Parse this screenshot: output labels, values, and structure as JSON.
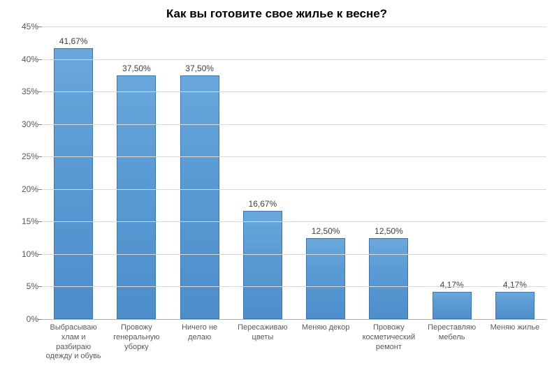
{
  "chart": {
    "type": "bar",
    "title": "Как вы готовите свое жилье к весне?",
    "title_fontsize": 17,
    "title_fontweight": "bold",
    "title_color": "#000000",
    "background_color": "#ffffff",
    "grid_color": "#d9d9d9",
    "axis_line_color": "#b0b0b0",
    "tick_label_color": "#595959",
    "tick_label_fontsize": 12,
    "category_label_fontsize": 11,
    "data_label_fontsize": 12,
    "data_label_color": "#404040",
    "bar_fill_top": "#6aa8dc",
    "bar_fill_mid": "#5b9bd5",
    "bar_fill_bottom": "#4d8ecb",
    "bar_border_color": "#3a76b2",
    "bar_width_ratio": 0.62,
    "ylim": [
      0,
      45
    ],
    "ytick_step": 5,
    "ytick_suffix": "%",
    "yticks": [
      {
        "value": 0,
        "label": "0%"
      },
      {
        "value": 5,
        "label": "5%"
      },
      {
        "value": 10,
        "label": "10%"
      },
      {
        "value": 15,
        "label": "15%"
      },
      {
        "value": 20,
        "label": "20%"
      },
      {
        "value": 25,
        "label": "25%"
      },
      {
        "value": 30,
        "label": "30%"
      },
      {
        "value": 35,
        "label": "35%"
      },
      {
        "value": 40,
        "label": "40%"
      },
      {
        "value": 45,
        "label": "45%"
      }
    ],
    "categories": [
      "Выбрасываю хлам и разбираю одежду и обувь",
      "Провожу генеральную уборку",
      "Ничего не делаю",
      "Пересаживаю цветы",
      "Меняю декор",
      "Провожу косметический ремонт",
      "Переставляю мебель",
      "Меняю жилье"
    ],
    "values": [
      41.67,
      37.5,
      37.5,
      16.67,
      12.5,
      12.5,
      4.17,
      4.17
    ],
    "value_labels": [
      "41,67%",
      "37,50%",
      "37,50%",
      "16,67%",
      "12,50%",
      "12,50%",
      "4,17%",
      "4,17%"
    ]
  }
}
